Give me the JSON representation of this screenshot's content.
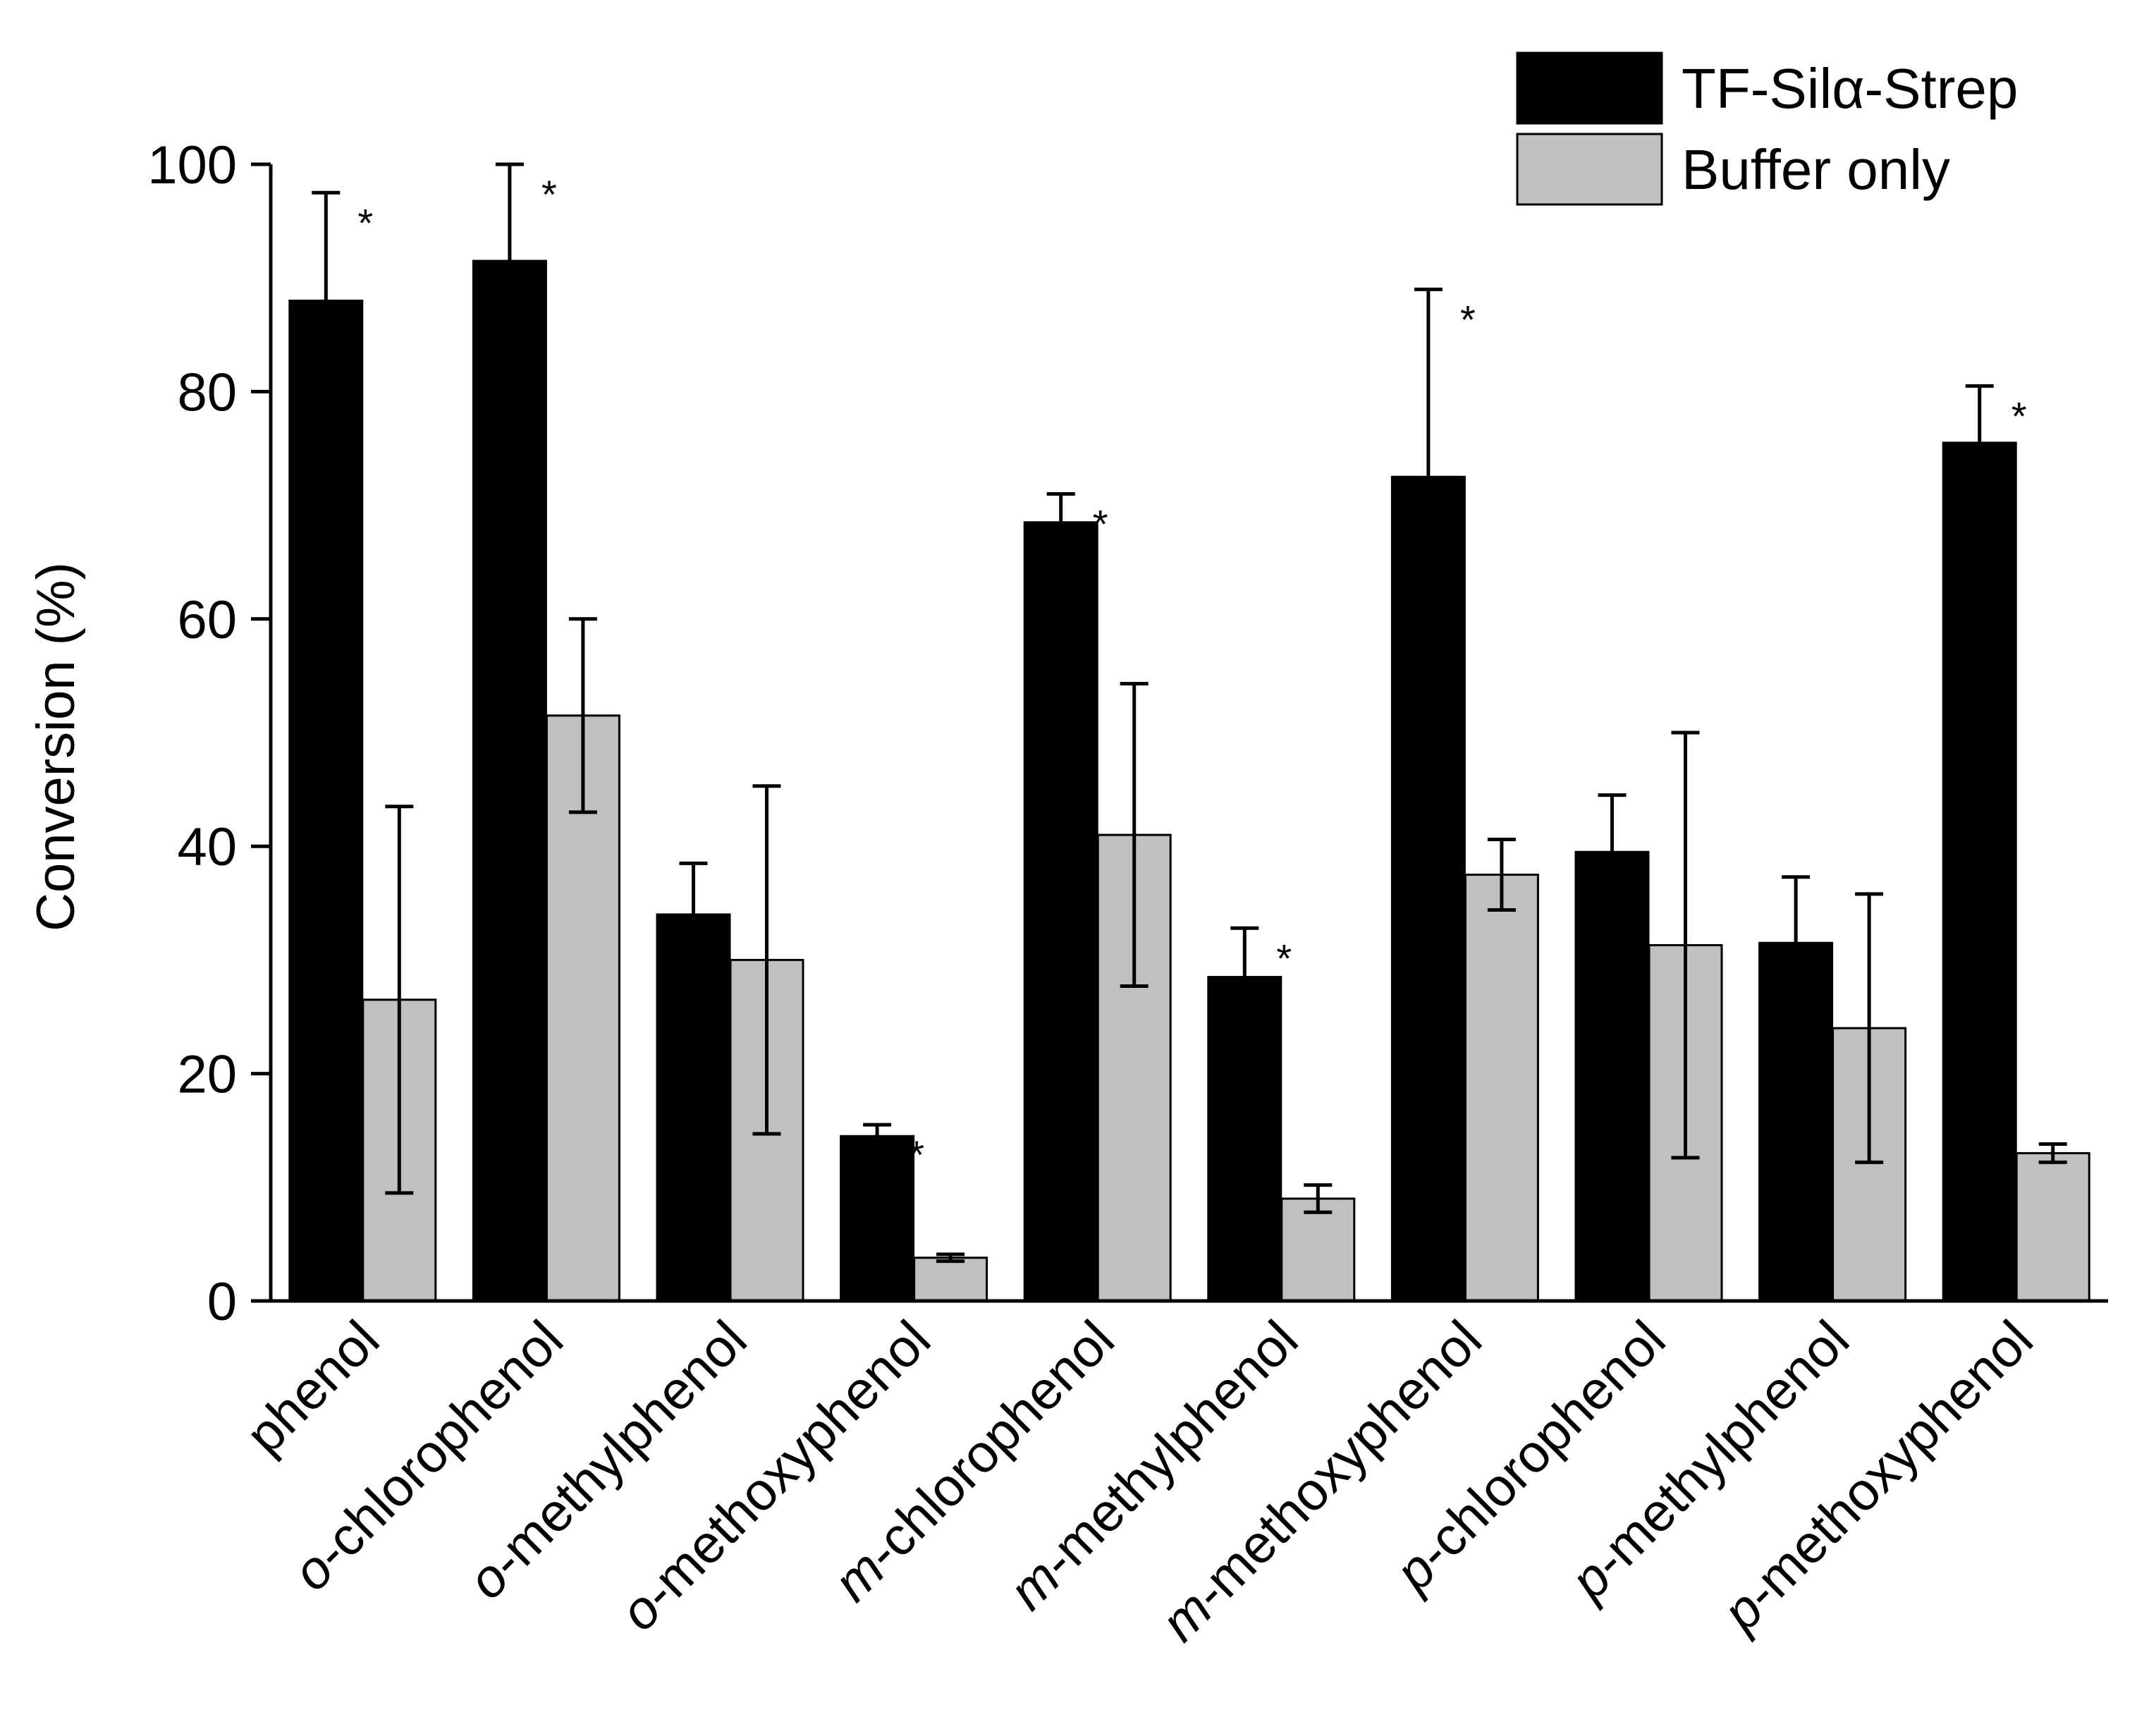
{
  "chart_data": {
    "type": "bar",
    "title": "",
    "xlabel": "",
    "ylabel": "Conversion (%)",
    "ylim": [
      0,
      100
    ],
    "yticks": [
      0,
      20,
      40,
      60,
      80,
      100
    ],
    "grid": false,
    "legend_position": "top-right",
    "categories": [
      {
        "prefix": "",
        "name": "phenol"
      },
      {
        "prefix": "o",
        "name": "-chlorophenol"
      },
      {
        "prefix": "o",
        "name": "-methylphenol"
      },
      {
        "prefix": "o",
        "name": "-methoxyphenol"
      },
      {
        "prefix": "m",
        "name": "-chlorophenol"
      },
      {
        "prefix": "m",
        "name": "-methylphenol"
      },
      {
        "prefix": "m",
        "name": "-methoxyphenol"
      },
      {
        "prefix": "p",
        "name": "-chlorophenol"
      },
      {
        "prefix": "p",
        "name": "-methylphenol"
      },
      {
        "prefix": "p",
        "name": "-methoxyphenol"
      }
    ],
    "series": [
      {
        "name": "TF-Silα-Strep",
        "color": "#000000",
        "values": [
          88,
          91.5,
          34,
          14.5,
          68.5,
          28.5,
          72.5,
          39.5,
          31.5,
          75.5
        ],
        "errors": [
          9.5,
          8.5,
          4.5,
          1,
          2.5,
          4.3,
          16.5,
          5,
          5.8,
          5
        ]
      },
      {
        "name": "Buffer only",
        "color": "#c0c0c0",
        "values": [
          26.5,
          51.5,
          30,
          3.8,
          41,
          9,
          37.5,
          31.3,
          24,
          13
        ],
        "errors": [
          17,
          8.5,
          15.3,
          0.3,
          13.3,
          1.2,
          3.1,
          18.7,
          11.8,
          0.8
        ]
      }
    ],
    "significance_marker": "*",
    "significant": [
      true,
      true,
      false,
      true,
      true,
      true,
      true,
      false,
      false,
      true
    ]
  }
}
